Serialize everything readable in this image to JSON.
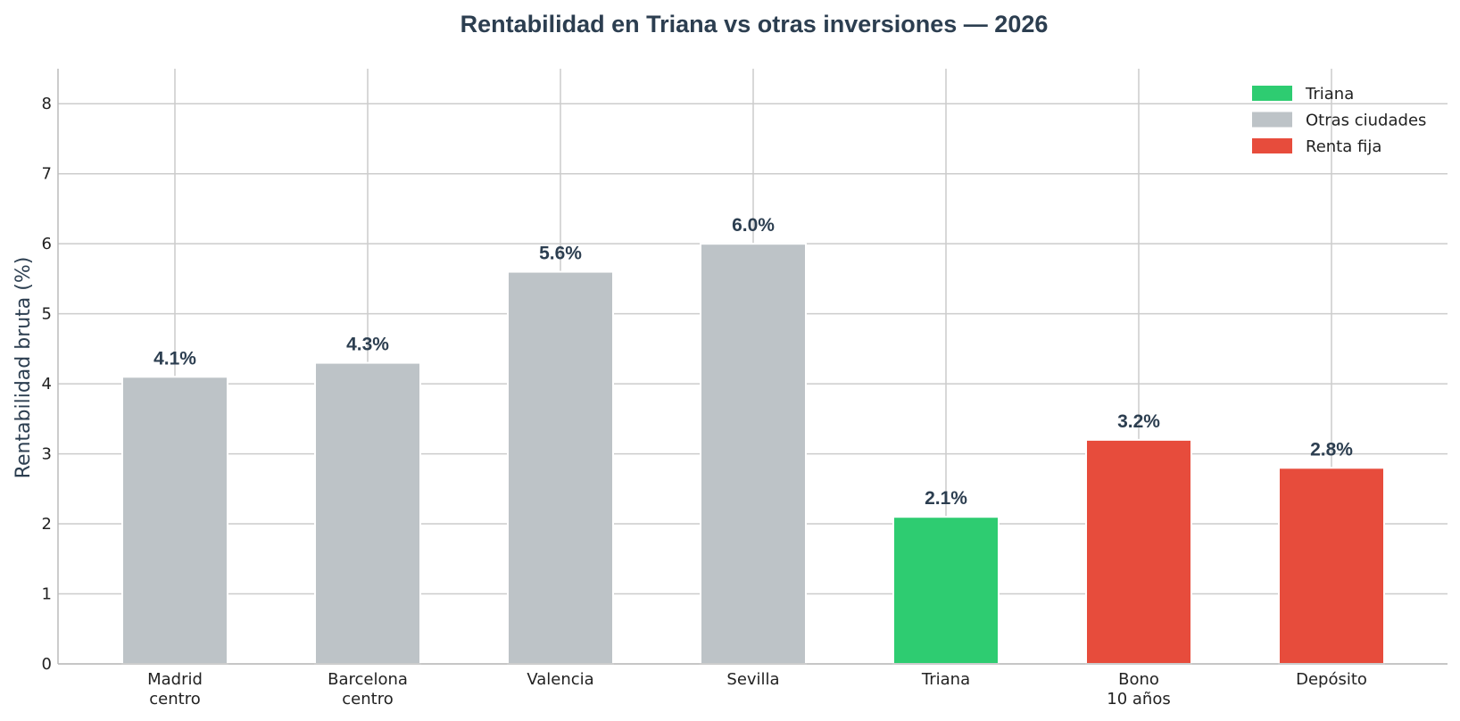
{
  "chart_data": {
    "type": "bar",
    "title": "Rentabilidad en Triana vs otras inversiones — 2026",
    "xlabel": "",
    "ylabel": "Rentabilidad bruta (%)",
    "ylim": [
      0,
      8.5
    ],
    "yticks": [
      0,
      1,
      2,
      3,
      4,
      5,
      6,
      7,
      8
    ],
    "grid": true,
    "legend_position": "top-right",
    "groups": [
      {
        "name": "Triana",
        "color": "#2ecc71"
      },
      {
        "name": "Otras ciudades",
        "color": "#bdc3c7"
      },
      {
        "name": "Renta fija",
        "color": "#e74c3c"
      }
    ],
    "categories": [
      [
        "Madrid",
        "centro"
      ],
      [
        "Barcelona",
        "centro"
      ],
      [
        "Valencia"
      ],
      [
        "Sevilla"
      ],
      [
        "Triana"
      ],
      [
        "Bono",
        "10 años"
      ],
      [
        "Depósito"
      ]
    ],
    "values": [
      4.1,
      4.3,
      5.6,
      6.0,
      2.1,
      3.2,
      2.8
    ],
    "value_labels": [
      "4.1%",
      "4.3%",
      "5.6%",
      "6.0%",
      "2.1%",
      "3.2%",
      "2.8%"
    ],
    "bar_groups": [
      "Otras ciudades",
      "Otras ciudades",
      "Otras ciudades",
      "Otras ciudades",
      "Triana",
      "Renta fija",
      "Renta fija"
    ]
  }
}
